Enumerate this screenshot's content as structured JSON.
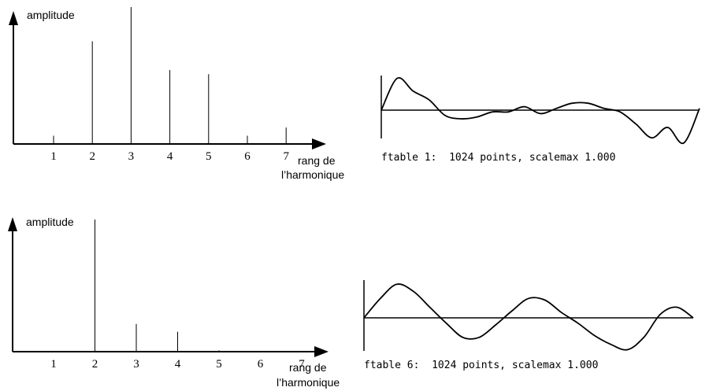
{
  "colors": {
    "ink": "#000000",
    "background": "#ffffff"
  },
  "spectrum_top": {
    "ylabel": "amplitude",
    "xlabel_line1": "rang de",
    "xlabel_line2": "l’harmonique"
  },
  "spectrum_bottom": {
    "ylabel": "amplitude",
    "xlabel_line1": "rang de",
    "xlabel_line2": "l’harmonique"
  },
  "wave_top": {
    "caption": "ftable 1:  1024 points, scalemax 1.000"
  },
  "wave_bottom": {
    "caption": "ftable 6:  1024 points, scalemax 1.000"
  },
  "chart_data": [
    {
      "type": "bar",
      "categories": [
        "1",
        "2",
        "3",
        "4",
        "5",
        "6",
        "7"
      ],
      "values": [
        0.06,
        0.75,
        1.0,
        0.54,
        0.51,
        0.06,
        0.12
      ],
      "ylim": [
        0,
        1
      ],
      "xlabel": "rang de l’harmonique",
      "ylabel": "amplitude",
      "title": ""
    },
    {
      "type": "bar",
      "categories": [
        "1",
        "2",
        "3",
        "4",
        "5",
        "6",
        "7"
      ],
      "values": [
        0,
        1.0,
        0.21,
        0.15,
        0.01,
        0,
        0
      ],
      "ylim": [
        0,
        1
      ],
      "xlabel": "rang de l’harmonique",
      "ylabel": "amplitude",
      "title": ""
    },
    {
      "type": "line",
      "title": "ftable 1:  1024 points, scalemax 1.000",
      "x": [
        0,
        0.05,
        0.1,
        0.15,
        0.2,
        0.25,
        0.3,
        0.35,
        0.4,
        0.45,
        0.5,
        0.55,
        0.6,
        0.65,
        0.7,
        0.75,
        0.8,
        0.85,
        0.9,
        0.95,
        1.0
      ],
      "y": [
        0,
        0.92,
        0.55,
        0.3,
        -0.15,
        -0.25,
        -0.2,
        -0.05,
        -0.05,
        0.1,
        -0.1,
        0.05,
        0.2,
        0.2,
        0.05,
        -0.05,
        -0.4,
        -0.8,
        -0.5,
        -0.95,
        0.05
      ],
      "ylim": [
        -1,
        1
      ]
    },
    {
      "type": "line",
      "title": "ftable 6:  1024 points, scalemax 1.000",
      "x": [
        0,
        0.05,
        0.1,
        0.15,
        0.2,
        0.25,
        0.3,
        0.35,
        0.4,
        0.45,
        0.5,
        0.55,
        0.6,
        0.65,
        0.7,
        0.75,
        0.8,
        0.85,
        0.9,
        0.95,
        1.0
      ],
      "y": [
        0,
        0.55,
        0.95,
        0.75,
        0.3,
        -0.15,
        -0.55,
        -0.55,
        -0.2,
        0.2,
        0.55,
        0.5,
        0.15,
        -0.15,
        -0.5,
        -0.75,
        -0.9,
        -0.55,
        0.1,
        0.3,
        0
      ],
      "ylim": [
        -1,
        1
      ]
    }
  ]
}
